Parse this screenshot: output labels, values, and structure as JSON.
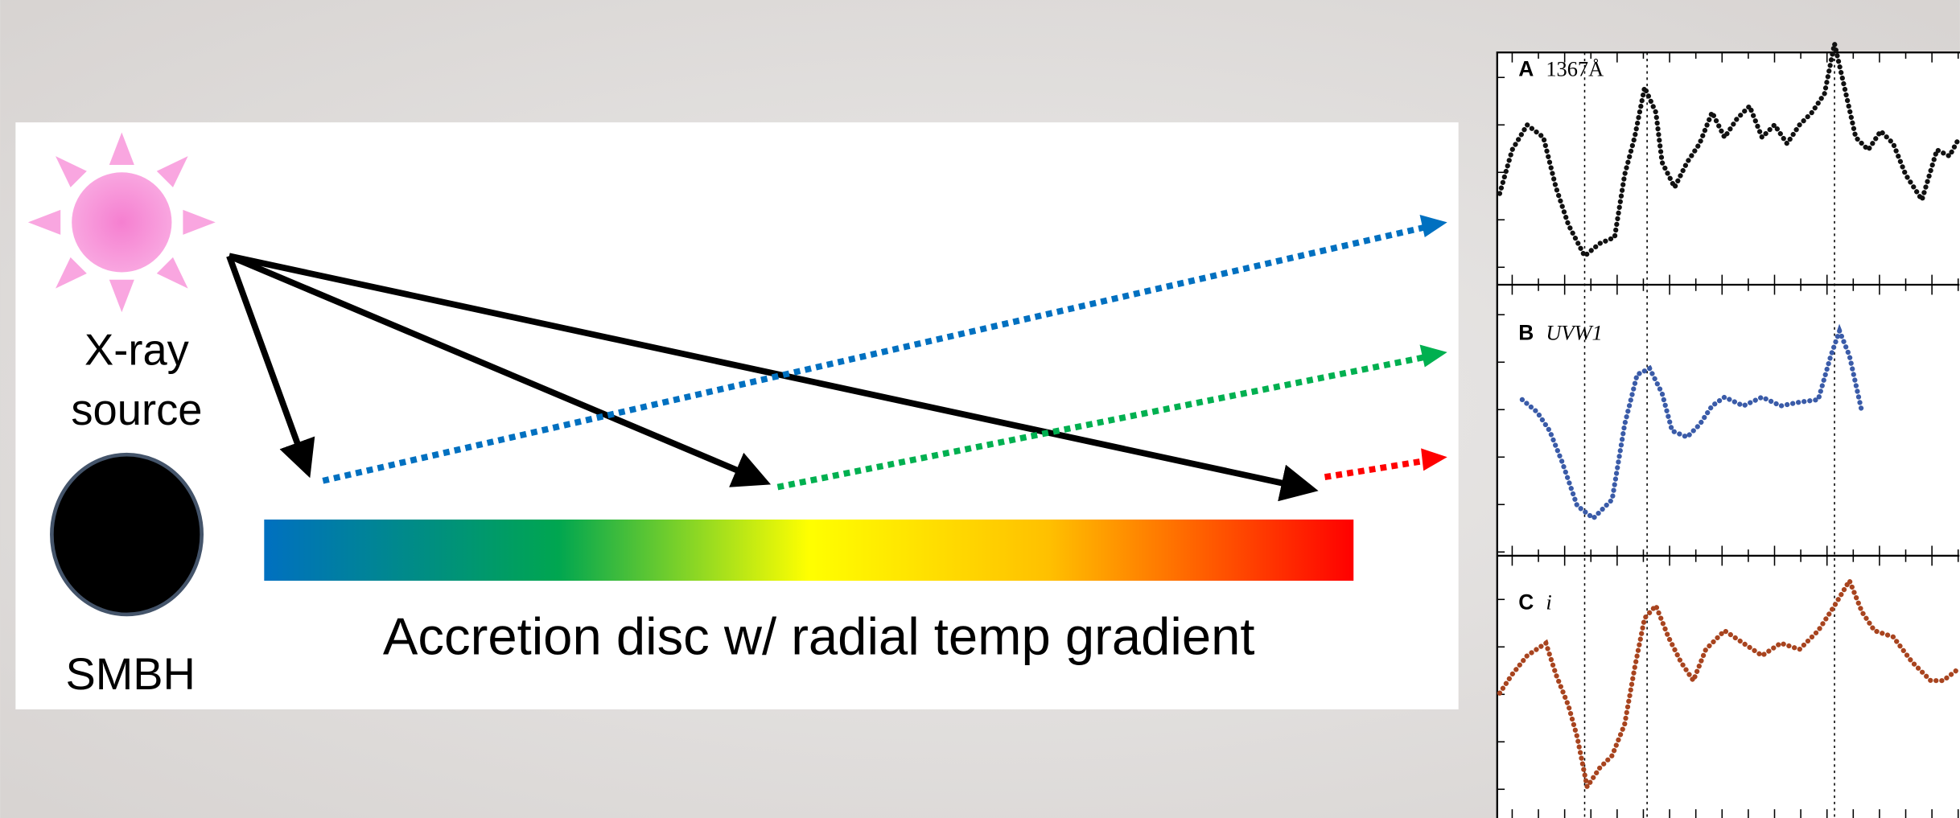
{
  "diagram": {
    "labels": {
      "xray_source": [
        "X-ray",
        "source"
      ],
      "smbh": "SMBH",
      "disc": "Accretion disc w/ radial temp gradient"
    },
    "panels": [
      {
        "letter": "A",
        "band": "1367Å"
      },
      {
        "letter": "B",
        "band": "UVW1"
      },
      {
        "letter": "C",
        "band": "i"
      }
    ]
  }
}
